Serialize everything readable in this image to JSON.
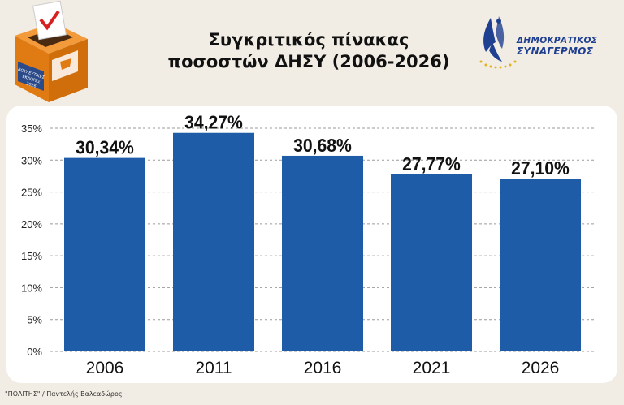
{
  "header": {
    "title_line1": "Συγκριτικός πίνακας",
    "title_line2": "ποσοστών ΔΗΣΥ (2006-2026)"
  },
  "logo": {
    "line1": "ΔΗΜΟΚΡΑΤΙΚΟΣ",
    "line2": "ΣΥΝΑΓΕΡΜΟΣ",
    "brand_color": "#1f3f91"
  },
  "ballot_box": {
    "label_line1": "ΒΟΥΛΕΥΤΙΚΕΣ",
    "label_line2": "ΕΚΛΟΓΕΣ",
    "label_line3": "2026",
    "color": "#e8801f"
  },
  "footer": {
    "credit": "\"ΠΟΛΙΤΗΣ\" / Παντελής Βαλεαδώρος"
  },
  "chart_data": {
    "type": "bar",
    "title": "",
    "xlabel": "",
    "ylabel": "",
    "categories": [
      "2006",
      "2011",
      "2016",
      "2021",
      "2026"
    ],
    "values": [
      30.34,
      34.27,
      30.68,
      27.77,
      27.1
    ],
    "value_labels": [
      "30,34%",
      "34,27%",
      "30,68%",
      "27,77%",
      "27,10%"
    ],
    "yticks": [
      0,
      5,
      10,
      15,
      20,
      25,
      30,
      35
    ],
    "ytick_labels": [
      "0%",
      "5%",
      "10%",
      "15%",
      "20%",
      "25%",
      "30%",
      "35%"
    ],
    "ylim": [
      0,
      35
    ],
    "grid": true,
    "bar_color": "#1f5ca8"
  }
}
